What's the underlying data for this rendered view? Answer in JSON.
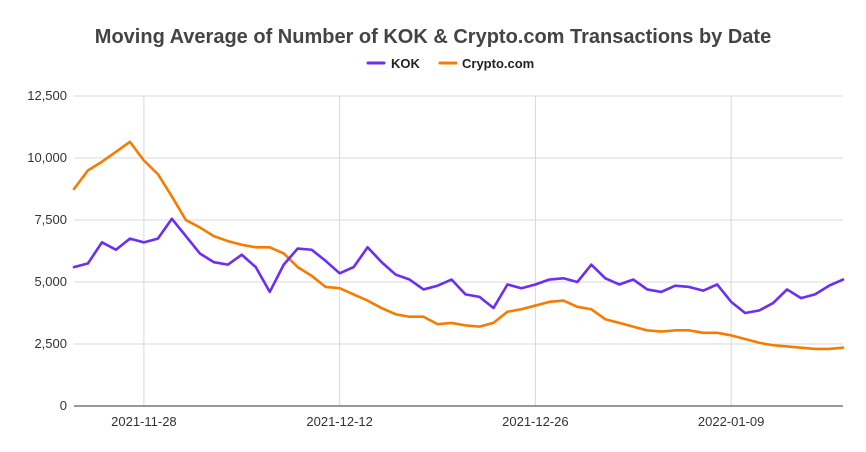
{
  "chart_data": {
    "type": "line",
    "title": "Moving Average of Number of KOK & Crypto.com Transactions by Date",
    "xlabel": "",
    "ylabel": "",
    "ylim": [
      0,
      12500
    ],
    "y_ticks": [
      {
        "value": 0,
        "label": "0"
      },
      {
        "value": 2500,
        "label": "2,500"
      },
      {
        "value": 5000,
        "label": "5,000"
      },
      {
        "value": 7500,
        "label": "7,500"
      },
      {
        "value": 10000,
        "label": "10,000"
      },
      {
        "value": 12500,
        "label": "12,500"
      }
    ],
    "x_start_date": "2021-11-23",
    "x_ticks": [
      {
        "day": 5,
        "label": "2021-11-28"
      },
      {
        "day": 19,
        "label": "2021-12-12"
      },
      {
        "day": 33,
        "label": "2021-12-26"
      },
      {
        "day": 47,
        "label": "2022-01-09"
      }
    ],
    "legend_position": "top-center",
    "series": [
      {
        "name": "KOK",
        "color": "#6a2ff0",
        "values": [
          5600,
          5750,
          6600,
          6300,
          6750,
          6600,
          6750,
          7550,
          6850,
          6150,
          5800,
          5700,
          6100,
          5600,
          4600,
          5700,
          6350,
          6300,
          5850,
          5350,
          5600,
          6400,
          5800,
          5300,
          5100,
          4700,
          4850,
          5100,
          4500,
          4400,
          3950,
          4900,
          4750,
          4900,
          5100,
          5150,
          5000,
          5700,
          5150,
          4900,
          5100,
          4700,
          4600,
          4850,
          4800,
          4650,
          4900,
          4200,
          3750,
          3850,
          4150,
          4700,
          4350,
          4500,
          4850,
          5100
        ]
      },
      {
        "name": "Crypto.com",
        "color": "#f57c00",
        "values": [
          8750,
          9500,
          9850,
          10250,
          10650,
          9900,
          9350,
          8450,
          7500,
          7200,
          6850,
          6650,
          6500,
          6400,
          6400,
          6150,
          5600,
          5250,
          4800,
          4750,
          4500,
          4250,
          3950,
          3700,
          3600,
          3600,
          3300,
          3350,
          3250,
          3200,
          3350,
          3800,
          3900,
          4050,
          4200,
          4250,
          4000,
          3900,
          3500,
          3350,
          3200,
          3050,
          3000,
          3050,
          3050,
          2950,
          2950,
          2850,
          2700,
          2550,
          2450,
          2400,
          2350,
          2300,
          2300,
          2350
        ]
      }
    ]
  }
}
